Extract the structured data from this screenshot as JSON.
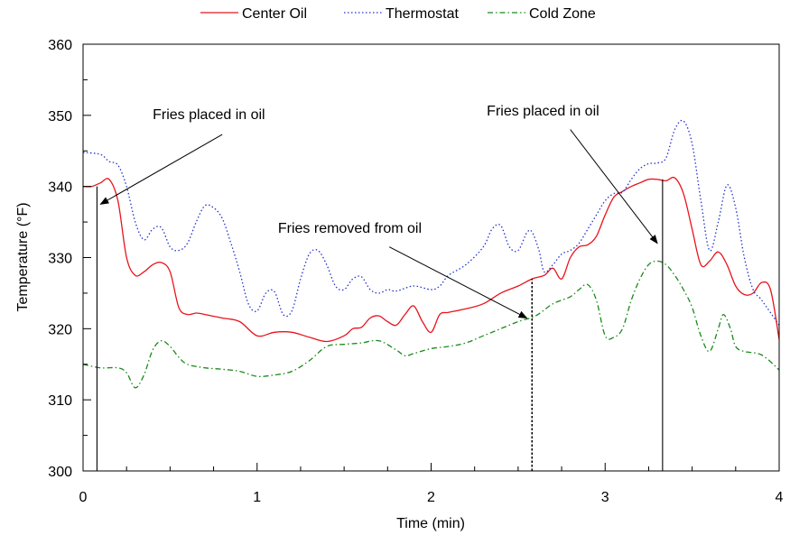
{
  "chart_data": {
    "type": "line",
    "xlabel": "Time (min)",
    "ylabel": "Temperature (°F)",
    "xlim": [
      0,
      4
    ],
    "ylim": [
      300,
      360
    ],
    "xticks": [
      0,
      1,
      2,
      3,
      4
    ],
    "yticks": [
      300,
      310,
      320,
      330,
      340,
      350,
      360
    ],
    "x_minor_step": 0.25,
    "y_minor_step": 5,
    "grid": false,
    "legend_position": "top-center",
    "series": [
      {
        "name": "Center Oil",
        "color": "#e8141c",
        "style": "solid",
        "points": [
          [
            0,
            340
          ],
          [
            0.05,
            340
          ],
          [
            0.1,
            340.5
          ],
          [
            0.15,
            341
          ],
          [
            0.2,
            338
          ],
          [
            0.25,
            330
          ],
          [
            0.3,
            327.5
          ],
          [
            0.35,
            328
          ],
          [
            0.4,
            329
          ],
          [
            0.45,
            329.3
          ],
          [
            0.5,
            328
          ],
          [
            0.55,
            323
          ],
          [
            0.6,
            322
          ],
          [
            0.65,
            322.2
          ],
          [
            0.7,
            322
          ],
          [
            0.8,
            321.5
          ],
          [
            0.9,
            321
          ],
          [
            1,
            319
          ],
          [
            1.1,
            319.5
          ],
          [
            1.2,
            319.5
          ],
          [
            1.3,
            318.8
          ],
          [
            1.4,
            318.2
          ],
          [
            1.5,
            319
          ],
          [
            1.55,
            320
          ],
          [
            1.6,
            320.2
          ],
          [
            1.65,
            321.5
          ],
          [
            1.7,
            321.8
          ],
          [
            1.75,
            321
          ],
          [
            1.8,
            320.5
          ],
          [
            1.85,
            322
          ],
          [
            1.9,
            323.2
          ],
          [
            1.95,
            321
          ],
          [
            2,
            319.5
          ],
          [
            2.05,
            322
          ],
          [
            2.1,
            322.3
          ],
          [
            2.2,
            322.8
          ],
          [
            2.3,
            323.5
          ],
          [
            2.4,
            325
          ],
          [
            2.5,
            326
          ],
          [
            2.58,
            327
          ],
          [
            2.65,
            327.5
          ],
          [
            2.7,
            328.5
          ],
          [
            2.75,
            327
          ],
          [
            2.8,
            330
          ],
          [
            2.85,
            331.5
          ],
          [
            2.9,
            331.8
          ],
          [
            2.95,
            333
          ],
          [
            3,
            336
          ],
          [
            3.05,
            338.5
          ],
          [
            3.1,
            339.3
          ],
          [
            3.15,
            340
          ],
          [
            3.2,
            340.5
          ],
          [
            3.25,
            341
          ],
          [
            3.3,
            341
          ],
          [
            3.35,
            340.8
          ],
          [
            3.4,
            341.2
          ],
          [
            3.45,
            339
          ],
          [
            3.5,
            334
          ],
          [
            3.55,
            329
          ],
          [
            3.6,
            329.5
          ],
          [
            3.65,
            330.8
          ],
          [
            3.7,
            329
          ],
          [
            3.75,
            326
          ],
          [
            3.8,
            324.8
          ],
          [
            3.85,
            325
          ],
          [
            3.9,
            326.5
          ],
          [
            3.95,
            325.5
          ],
          [
            4,
            318.5
          ]
        ]
      },
      {
        "name": "Thermostat",
        "color": "#2233cc",
        "style": "dotted",
        "points": [
          [
            0,
            344.8
          ],
          [
            0.1,
            344.5
          ],
          [
            0.15,
            343.5
          ],
          [
            0.2,
            343
          ],
          [
            0.25,
            340
          ],
          [
            0.3,
            335
          ],
          [
            0.35,
            332.5
          ],
          [
            0.4,
            334
          ],
          [
            0.45,
            334.2
          ],
          [
            0.5,
            331.5
          ],
          [
            0.55,
            331
          ],
          [
            0.6,
            332
          ],
          [
            0.65,
            335
          ],
          [
            0.7,
            337.3
          ],
          [
            0.75,
            337
          ],
          [
            0.8,
            335.5
          ],
          [
            0.85,
            332
          ],
          [
            0.9,
            328
          ],
          [
            0.95,
            323.5
          ],
          [
            1,
            322.5
          ],
          [
            1.05,
            325
          ],
          [
            1.1,
            325.2
          ],
          [
            1.15,
            322
          ],
          [
            1.2,
            322.5
          ],
          [
            1.25,
            327
          ],
          [
            1.3,
            330.5
          ],
          [
            1.35,
            331
          ],
          [
            1.4,
            329
          ],
          [
            1.45,
            326
          ],
          [
            1.5,
            325.5
          ],
          [
            1.55,
            327
          ],
          [
            1.6,
            327.3
          ],
          [
            1.65,
            325.5
          ],
          [
            1.7,
            325
          ],
          [
            1.75,
            325.5
          ],
          [
            1.8,
            325.3
          ],
          [
            1.9,
            326
          ],
          [
            2,
            325.5
          ],
          [
            2.05,
            326
          ],
          [
            2.1,
            327.5
          ],
          [
            2.2,
            329
          ],
          [
            2.3,
            331.5
          ],
          [
            2.35,
            334
          ],
          [
            2.4,
            334.5
          ],
          [
            2.45,
            331.5
          ],
          [
            2.5,
            331
          ],
          [
            2.55,
            333.5
          ],
          [
            2.58,
            333.6
          ],
          [
            2.62,
            331
          ],
          [
            2.65,
            328
          ],
          [
            2.7,
            329
          ],
          [
            2.75,
            330.5
          ],
          [
            2.8,
            331
          ],
          [
            2.85,
            332
          ],
          [
            2.9,
            334
          ],
          [
            2.95,
            336
          ],
          [
            3,
            338
          ],
          [
            3.05,
            339
          ],
          [
            3.1,
            339.2
          ],
          [
            3.15,
            341
          ],
          [
            3.2,
            342.5
          ],
          [
            3.25,
            343.2
          ],
          [
            3.3,
            343.3
          ],
          [
            3.35,
            344
          ],
          [
            3.4,
            348
          ],
          [
            3.45,
            349.2
          ],
          [
            3.5,
            346
          ],
          [
            3.55,
            338
          ],
          [
            3.6,
            331
          ],
          [
            3.65,
            335
          ],
          [
            3.7,
            340.2
          ],
          [
            3.75,
            337
          ],
          [
            3.8,
            330
          ],
          [
            3.85,
            325.5
          ],
          [
            3.9,
            324
          ],
          [
            4,
            320.5
          ]
        ]
      },
      {
        "name": "Cold Zone",
        "color": "#1a8a1a",
        "style": "dashdot",
        "points": [
          [
            0,
            315
          ],
          [
            0.1,
            314.5
          ],
          [
            0.2,
            314.5
          ],
          [
            0.25,
            313.8
          ],
          [
            0.3,
            311.7
          ],
          [
            0.35,
            313.5
          ],
          [
            0.4,
            317
          ],
          [
            0.45,
            318.3
          ],
          [
            0.5,
            317.5
          ],
          [
            0.55,
            316
          ],
          [
            0.6,
            315
          ],
          [
            0.7,
            314.5
          ],
          [
            0.8,
            314.3
          ],
          [
            0.9,
            314
          ],
          [
            1,
            313.3
          ],
          [
            1.1,
            313.5
          ],
          [
            1.2,
            314
          ],
          [
            1.3,
            315.5
          ],
          [
            1.4,
            317.5
          ],
          [
            1.5,
            317.8
          ],
          [
            1.6,
            318
          ],
          [
            1.7,
            318.3
          ],
          [
            1.8,
            317
          ],
          [
            1.85,
            316.2
          ],
          [
            1.9,
            316.5
          ],
          [
            2,
            317.2
          ],
          [
            2.1,
            317.5
          ],
          [
            2.2,
            318
          ],
          [
            2.3,
            319
          ],
          [
            2.4,
            320
          ],
          [
            2.5,
            321
          ],
          [
            2.6,
            321.8
          ],
          [
            2.7,
            323.5
          ],
          [
            2.8,
            324.5
          ],
          [
            2.85,
            325.5
          ],
          [
            2.9,
            326.2
          ],
          [
            2.95,
            324
          ],
          [
            3,
            319
          ],
          [
            3.05,
            318.8
          ],
          [
            3.1,
            320
          ],
          [
            3.15,
            324
          ],
          [
            3.2,
            327
          ],
          [
            3.25,
            329
          ],
          [
            3.3,
            329.5
          ],
          [
            3.35,
            329
          ],
          [
            3.4,
            327.5
          ],
          [
            3.45,
            325.5
          ],
          [
            3.5,
            323
          ],
          [
            3.55,
            319
          ],
          [
            3.6,
            316.8
          ],
          [
            3.65,
            320
          ],
          [
            3.68,
            322
          ],
          [
            3.72,
            320
          ],
          [
            3.75,
            317.5
          ],
          [
            3.8,
            316.8
          ],
          [
            3.9,
            316.3
          ],
          [
            4,
            314.2
          ]
        ]
      }
    ],
    "vlines": [
      {
        "x": 0.08,
        "y_top": 340,
        "style": "solid"
      },
      {
        "x": 2.58,
        "y_top": 327,
        "style": "dotted"
      },
      {
        "x": 3.33,
        "y_top": 341,
        "style": "solid"
      }
    ],
    "annotations": [
      {
        "text": "Fries placed in oil",
        "text_x": 0.4,
        "text_y": 349.5,
        "arrow_from": [
          0.8,
          347.3
        ],
        "arrow_to": [
          0.1,
          337.5
        ]
      },
      {
        "text": "Fries removed from oil",
        "text_x": 1.12,
        "text_y": 333.5,
        "arrow_from": [
          1.76,
          331.5
        ],
        "arrow_to": [
          2.55,
          321.5
        ]
      },
      {
        "text": "Fries placed in oil",
        "text_x": 2.32,
        "text_y": 350,
        "arrow_from": [
          2.8,
          348
        ],
        "arrow_to": [
          3.3,
          332
        ]
      }
    ]
  }
}
